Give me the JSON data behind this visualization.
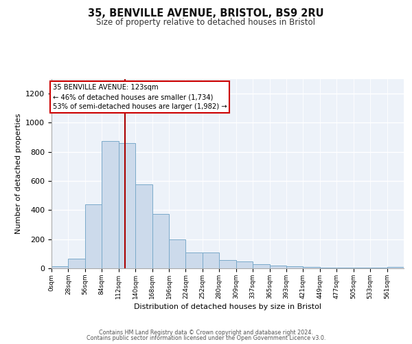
{
  "title": "35, BENVILLE AVENUE, BRISTOL, BS9 2RU",
  "subtitle": "Size of property relative to detached houses in Bristol",
  "xlabel": "Distribution of detached houses by size in Bristol",
  "ylabel": "Number of detached properties",
  "bar_color": "#ccdaeb",
  "bar_edge_color": "#7aaaca",
  "vline_x": 123,
  "vline_color": "#aa0000",
  "annotation_title": "35 BENVILLE AVENUE: 123sqm",
  "annotation_line1": "← 46% of detached houses are smaller (1,734)",
  "annotation_line2": "53% of semi-detached houses are larger (1,982) →",
  "annotation_box_color": "#ffffff",
  "annotation_box_edge": "#cc0000",
  "categories": [
    "0sqm",
    "28sqm",
    "56sqm",
    "84sqm",
    "112sqm",
    "140sqm",
    "168sqm",
    "196sqm",
    "224sqm",
    "252sqm",
    "280sqm",
    "309sqm",
    "337sqm",
    "365sqm",
    "393sqm",
    "421sqm",
    "449sqm",
    "477sqm",
    "505sqm",
    "533sqm",
    "561sqm"
  ],
  "values": [
    12,
    65,
    440,
    875,
    860,
    575,
    375,
    200,
    110,
    110,
    55,
    45,
    28,
    20,
    15,
    8,
    5,
    5,
    5,
    5,
    10
  ],
  "ylim": [
    0,
    1300
  ],
  "yticks": [
    0,
    200,
    400,
    600,
    800,
    1000,
    1200
  ],
  "bin_width": 28,
  "footer_line1": "Contains HM Land Registry data © Crown copyright and database right 2024.",
  "footer_line2": "Contains public sector information licensed under the Open Government Licence v3.0."
}
